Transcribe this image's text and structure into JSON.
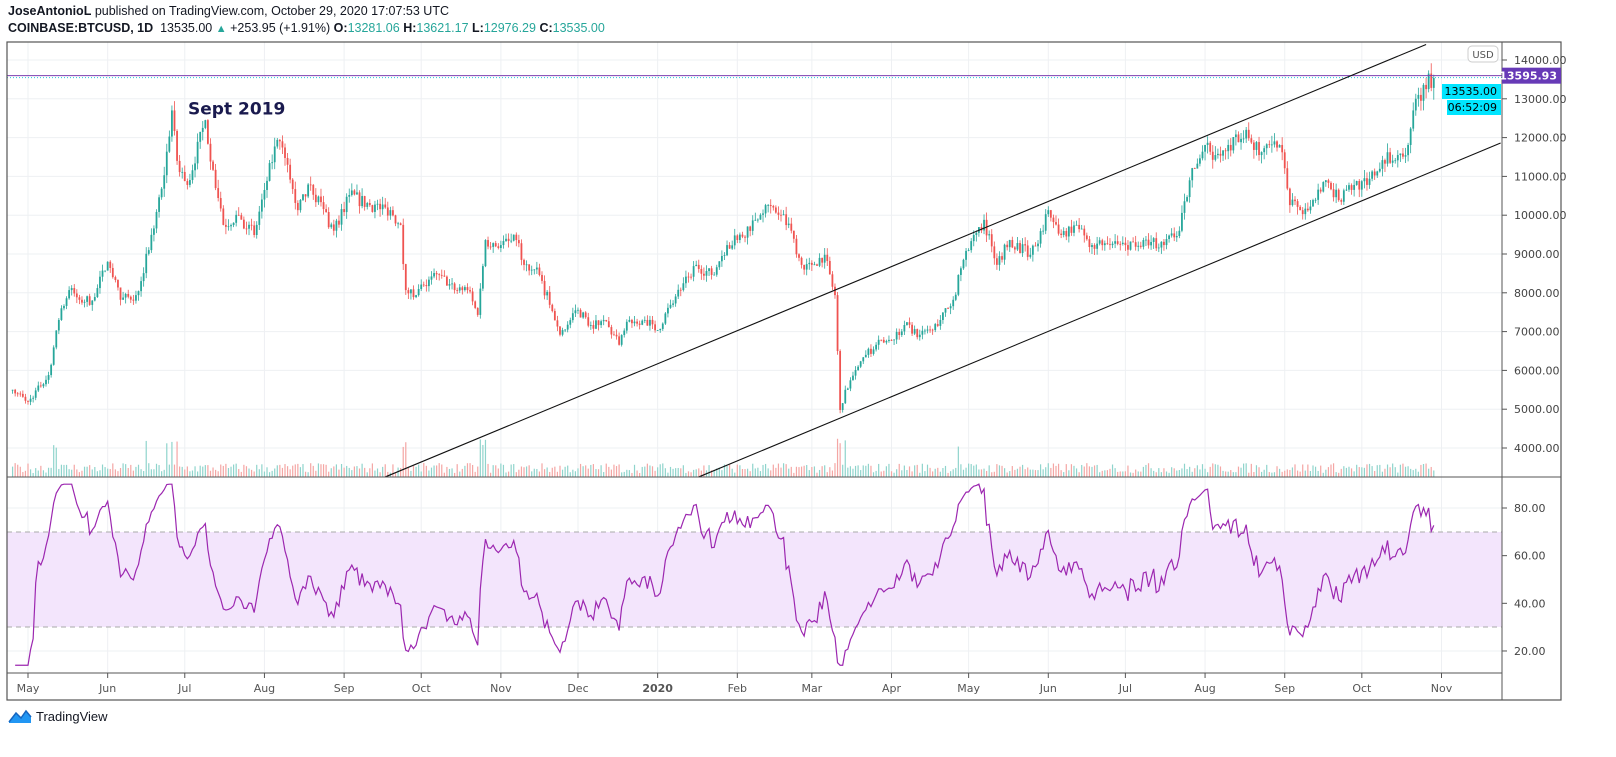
{
  "header": {
    "author": "JoseAntonioL",
    "published": "published on TradingView.com, October 29, 2020 17:07:53 UTC",
    "symbol": "COINBASE:BTCUSD, 1D",
    "last": "13535.00",
    "change": "+253.95 (+1.91%)",
    "o_label": "O:",
    "o": "13281.06",
    "h_label": "H:",
    "h": "13621.17",
    "l_label": "L:",
    "l": "12976.29",
    "c_label": "C:",
    "c": "13535.00"
  },
  "footer": {
    "brand": "TradingView"
  },
  "colors": {
    "up": "#26a69a",
    "down": "#ef5350",
    "rsi": "#9c27b0",
    "rsi_band": "#f3e5fc",
    "level_line": "#7b3fb0",
    "last_price": "#00e5ff"
  },
  "chart_data": [
    {
      "type": "candlestick",
      "symbol": "COINBASE:BTCUSD",
      "interval": "1D",
      "currency_badge": "USD",
      "ylim": [
        3200,
        14500
      ],
      "y_ticks": [
        "4000.00",
        "5000.00",
        "6000.00",
        "7000.00",
        "8000.00",
        "9000.00",
        "10000.00",
        "11000.00",
        "12000.00",
        "13000.00",
        "14000.00"
      ],
      "x_ticks": [
        "May",
        "Jun",
        "Jul",
        "Aug",
        "Sep",
        "Oct",
        "Nov",
        "Dec",
        "2020",
        "Feb",
        "Mar",
        "Apr",
        "May",
        "Jun",
        "Jul",
        "Aug",
        "Sep",
        "Oct",
        "Nov"
      ],
      "x_tick_dates": [
        "2019-05-01",
        "2019-06-01",
        "2019-07-01",
        "2019-08-01",
        "2019-09-01",
        "2019-10-01",
        "2019-11-01",
        "2019-12-01",
        "2020-01-01",
        "2020-02-01",
        "2020-03-01",
        "2020-04-01",
        "2020-05-01",
        "2020-06-01",
        "2020-07-01",
        "2020-08-01",
        "2020-09-01",
        "2020-10-01",
        "2020-11-01"
      ],
      "approx_close_path": [
        [
          "2019-04-25",
          5500
        ],
        [
          "2019-05-01",
          5190
        ],
        [
          "2019-05-09",
          5880
        ],
        [
          "2019-05-13",
          7300
        ],
        [
          "2019-05-17",
          8070
        ],
        [
          "2019-05-21",
          7820
        ],
        [
          "2019-05-26",
          7800
        ],
        [
          "2019-06-01",
          8800
        ],
        [
          "2019-06-06",
          7820
        ],
        [
          "2019-06-12",
          7940
        ],
        [
          "2019-06-17",
          9100
        ],
        [
          "2019-06-23",
          11030
        ],
        [
          "2019-06-26",
          12700
        ],
        [
          "2019-06-28",
          11400
        ],
        [
          "2019-07-02",
          10780
        ],
        [
          "2019-07-09",
          12450
        ],
        [
          "2019-07-12",
          11170
        ],
        [
          "2019-07-16",
          9750
        ],
        [
          "2019-07-22",
          10000
        ],
        [
          "2019-07-28",
          9490
        ],
        [
          "2019-08-01",
          10650
        ],
        [
          "2019-08-06",
          11940
        ],
        [
          "2019-08-10",
          11300
        ],
        [
          "2019-08-14",
          10130
        ],
        [
          "2019-08-19",
          10780
        ],
        [
          "2019-08-28",
          9600
        ],
        [
          "2019-09-03",
          10520
        ],
        [
          "2019-09-11",
          10260
        ],
        [
          "2019-09-19",
          10130
        ],
        [
          "2019-09-23",
          9750
        ],
        [
          "2019-09-25",
          8070
        ],
        [
          "2019-09-29",
          7940
        ],
        [
          "2019-10-02",
          8200
        ],
        [
          "2019-10-08",
          8460
        ],
        [
          "2019-10-14",
          8070
        ],
        [
          "2019-10-19",
          8070
        ],
        [
          "2019-10-23",
          7430
        ],
        [
          "2019-10-26",
          9360
        ],
        [
          "2019-11-01",
          9230
        ],
        [
          "2019-11-07",
          9360
        ],
        [
          "2019-11-10",
          8720
        ],
        [
          "2019-11-16",
          8460
        ],
        [
          "2019-11-20",
          7690
        ],
        [
          "2019-11-24",
          6920
        ],
        [
          "2019-12-01",
          7560
        ],
        [
          "2019-12-06",
          7170
        ],
        [
          "2019-12-11",
          7300
        ],
        [
          "2019-12-17",
          6660
        ],
        [
          "2019-12-21",
          7300
        ],
        [
          "2019-12-27",
          7300
        ],
        [
          "2020-01-01",
          7040
        ],
        [
          "2020-01-06",
          7690
        ],
        [
          "2020-01-10",
          8070
        ],
        [
          "2020-01-16",
          8720
        ],
        [
          "2020-01-22",
          8460
        ],
        [
          "2020-01-28",
          9230
        ],
        [
          "2020-02-01",
          9360
        ],
        [
          "2020-02-08",
          9880
        ],
        [
          "2020-02-12",
          10260
        ],
        [
          "2020-02-18",
          10000
        ],
        [
          "2020-02-22",
          9600
        ],
        [
          "2020-02-26",
          8720
        ],
        [
          "2020-03-01",
          8720
        ],
        [
          "2020-03-06",
          8980
        ],
        [
          "2020-03-10",
          7940
        ],
        [
          "2020-03-12",
          4980
        ],
        [
          "2020-03-14",
          5500
        ],
        [
          "2020-03-18",
          6010
        ],
        [
          "2020-03-22",
          6400
        ],
        [
          "2020-03-26",
          6660
        ],
        [
          "2020-04-01",
          6780
        ],
        [
          "2020-04-06",
          7170
        ],
        [
          "2020-04-12",
          6920
        ],
        [
          "2020-04-17",
          7040
        ],
        [
          "2020-04-25",
          7820
        ],
        [
          "2020-04-29",
          8850
        ],
        [
          "2020-05-01",
          9100
        ],
        [
          "2020-05-07",
          9880
        ],
        [
          "2020-05-12",
          8720
        ],
        [
          "2020-05-17",
          9360
        ],
        [
          "2020-05-25",
          8980
        ],
        [
          "2020-05-30",
          9600
        ],
        [
          "2020-06-01",
          10130
        ],
        [
          "2020-06-06",
          9490
        ],
        [
          "2020-06-12",
          9750
        ],
        [
          "2020-06-18",
          9230
        ],
        [
          "2020-06-25",
          9230
        ],
        [
          "2020-07-01",
          9230
        ],
        [
          "2020-07-08",
          9360
        ],
        [
          "2020-07-16",
          9230
        ],
        [
          "2020-07-22",
          9600
        ],
        [
          "2020-07-26",
          10900
        ],
        [
          "2020-08-01",
          11810
        ],
        [
          "2020-08-05",
          11550
        ],
        [
          "2020-08-10",
          11810
        ],
        [
          "2020-08-17",
          12200
        ],
        [
          "2020-08-22",
          11550
        ],
        [
          "2020-08-30",
          11810
        ],
        [
          "2020-09-03",
          10260
        ],
        [
          "2020-09-07",
          10130
        ],
        [
          "2020-09-12",
          10390
        ],
        [
          "2020-09-17",
          10900
        ],
        [
          "2020-09-22",
          10390
        ],
        [
          "2020-09-28",
          10780
        ],
        [
          "2020-10-03",
          10780
        ],
        [
          "2020-10-09",
          11420
        ],
        [
          "2020-10-15",
          11550
        ],
        [
          "2020-10-19",
          11810
        ],
        [
          "2020-10-21",
          12700
        ],
        [
          "2020-10-23",
          13100
        ],
        [
          "2020-10-26",
          13250
        ],
        [
          "2020-10-27",
          13650
        ],
        [
          "2020-10-28",
          13281.06
        ]
      ],
      "last_bar": {
        "date": "2020-10-29",
        "open": 13281.06,
        "high": 13621.17,
        "low": 12976.29,
        "close": 13535.0
      },
      "trendlines": [
        {
          "from": [
            "2019-09-17",
            3254
          ],
          "to": [
            "2020-10-26",
            14400
          ]
        },
        {
          "from": [
            "2020-01-17",
            3254
          ],
          "to": [
            "2020-11-24",
            11860
          ]
        }
      ],
      "horizontal_line": {
        "price": 13595.93,
        "label": "13595.93"
      },
      "last_price_label": "13535.00",
      "countdown_label": "06:52:09",
      "annotation": {
        "text": "Sept 2019",
        "date": "2019-06-30",
        "price": 12650
      }
    },
    {
      "type": "line",
      "indicator": "RSI",
      "ylim": [
        12,
        93
      ],
      "y_ticks": [
        "20.00",
        "40.00",
        "60.00",
        "80.00"
      ],
      "bands": [
        30,
        70
      ]
    }
  ]
}
